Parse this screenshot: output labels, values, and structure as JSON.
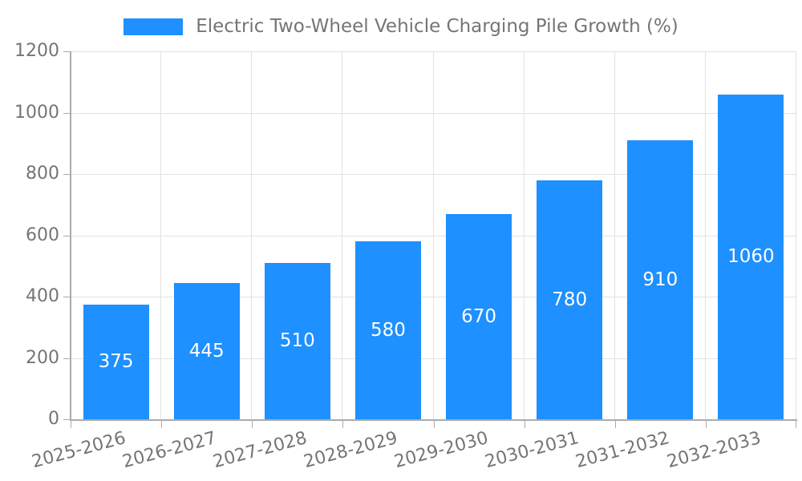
{
  "legend": {
    "label": "Electric Two-Wheel Vehicle Charging Pile Growth (%)"
  },
  "colors": {
    "bar": "#1e90ff",
    "grid": "#e2e2e2",
    "axis": "#ababab",
    "tick_text": "#757575",
    "value_label_text": "#ffffff",
    "background": "#ffffff"
  },
  "chart_data": {
    "type": "bar",
    "title": "Electric Two-Wheel Vehicle Charging Pile Growth (%)",
    "categories": [
      "2025-2026",
      "2026-2027",
      "2027-2028",
      "2028-2029",
      "2029-2030",
      "2030-2031",
      "2031-2032",
      "2032-2033"
    ],
    "values": [
      375,
      445,
      510,
      580,
      670,
      780,
      910,
      1060
    ],
    "xlabel": "",
    "ylabel": "",
    "ylim": [
      0,
      1200
    ],
    "yticks": [
      0,
      200,
      400,
      600,
      800,
      1000,
      1200
    ],
    "grid": "horizontal and vertical",
    "legend_position": "top-center",
    "value_label_position": "inside-center",
    "x_tick_rotation_deg": 15
  }
}
